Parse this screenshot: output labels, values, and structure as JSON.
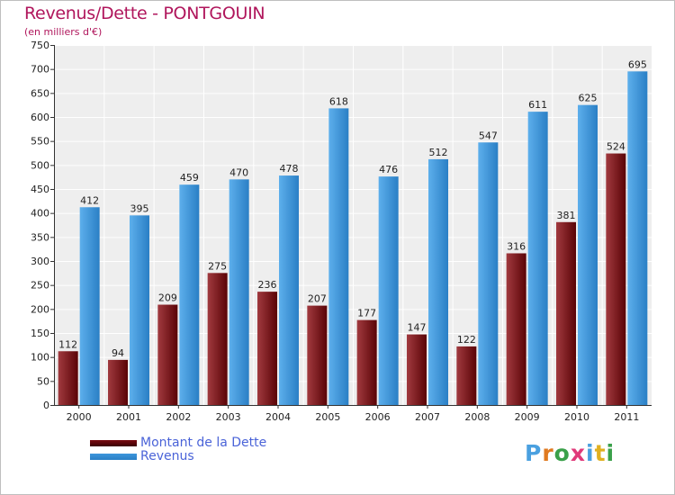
{
  "chart_data": {
    "type": "bar",
    "title": "Revenus/Dette - PONTGOUIN",
    "subtitle": "(en milliers d'€)",
    "categories": [
      "2000",
      "2001",
      "2002",
      "2003",
      "2004",
      "2005",
      "2006",
      "2007",
      "2008",
      "2009",
      "2010",
      "2011"
    ],
    "series": [
      {
        "name": "Montant de la Dette",
        "color": "#7a0a10",
        "values": [
          112,
          94,
          209,
          275,
          236,
          207,
          177,
          147,
          122,
          316,
          381,
          524
        ]
      },
      {
        "name": "Revenus",
        "color": "#3d96dc",
        "values": [
          412,
          395,
          459,
          470,
          478,
          618,
          476,
          512,
          547,
          611,
          625,
          695
        ]
      }
    ],
    "ylim": [
      0,
      750
    ],
    "yticks": [
      0,
      50,
      100,
      150,
      200,
      250,
      300,
      350,
      400,
      450,
      500,
      550,
      600,
      650,
      700,
      750
    ],
    "xlabel": "",
    "ylabel": "",
    "grid": true,
    "legend_position": "bottom-left"
  },
  "brand": {
    "text": "Proxiti",
    "colors": [
      "#4aa0e0",
      "#e07a20",
      "#3aa04a",
      "#e03a7a",
      "#4aa0e0",
      "#e0b020",
      "#3aa04a"
    ]
  }
}
